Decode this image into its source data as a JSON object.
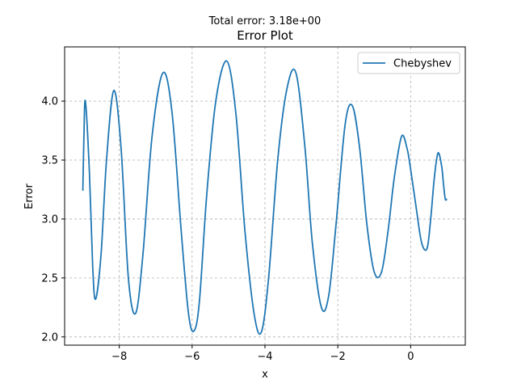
{
  "chart_data": {
    "type": "line",
    "suptitle": "Total error: 3.18e+00",
    "title": "Error Plot",
    "xlabel": "x",
    "ylabel": "Error",
    "xlim": [
      -9.5,
      1.5
    ],
    "ylim": [
      1.93,
      4.46
    ],
    "xticks": [
      -8,
      -6,
      -4,
      -2,
      0
    ],
    "xtick_labels": [
      "−8",
      "−6",
      "−4",
      "−2",
      "0"
    ],
    "yticks": [
      2.0,
      2.5,
      3.0,
      3.5,
      4.0
    ],
    "ytick_labels": [
      "2.0",
      "2.5",
      "3.0",
      "3.5",
      "4.0"
    ],
    "grid": true,
    "legend_position": "top-right",
    "colors": {
      "line": "#1f77b4",
      "grid": "#b0b0b0",
      "axes": "#000000"
    },
    "series": [
      {
        "name": "Chebyshev",
        "x": [
          -9.0,
          -8.97,
          -8.93,
          -8.82,
          -8.73,
          -8.65,
          -8.5,
          -8.35,
          -8.15,
          -7.95,
          -7.75,
          -7.55,
          -7.35,
          -7.1,
          -6.8,
          -6.55,
          -6.3,
          -6.1,
          -5.95,
          -5.8,
          -5.6,
          -5.35,
          -5.05,
          -4.8,
          -4.55,
          -4.3,
          -4.1,
          -3.9,
          -3.65,
          -3.4,
          -3.15,
          -2.9,
          -2.7,
          -2.45,
          -2.25,
          -2.05,
          -1.8,
          -1.6,
          -1.4,
          -1.2,
          -1.0,
          -0.8,
          -0.62,
          -0.45,
          -0.25,
          -0.1,
          0.0,
          0.15,
          0.3,
          0.45,
          0.55,
          0.65,
          0.75,
          0.85,
          0.9,
          0.95,
          1.0
        ],
        "y": [
          3.24,
          3.7,
          4.0,
          3.4,
          2.6,
          2.32,
          2.7,
          3.5,
          4.09,
          3.6,
          2.5,
          2.2,
          2.7,
          3.7,
          4.24,
          3.9,
          2.9,
          2.2,
          2.05,
          2.3,
          3.2,
          4.0,
          4.34,
          3.9,
          2.9,
          2.2,
          2.04,
          2.5,
          3.5,
          4.1,
          4.24,
          3.6,
          2.8,
          2.25,
          2.35,
          2.95,
          3.8,
          3.96,
          3.6,
          2.95,
          2.55,
          2.55,
          2.9,
          3.35,
          3.7,
          3.6,
          3.42,
          3.1,
          2.8,
          2.75,
          3.0,
          3.35,
          3.56,
          3.45,
          3.3,
          3.17,
          3.17
        ]
      }
    ]
  }
}
